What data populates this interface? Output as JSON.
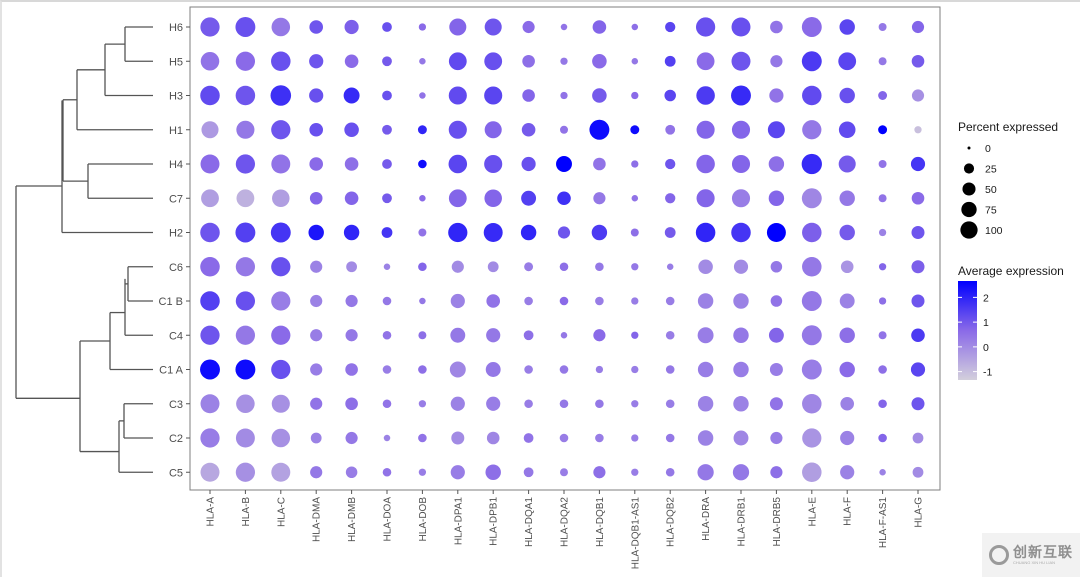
{
  "chart_data": {
    "type": "dotplot",
    "title": "",
    "xlabel": "",
    "ylabel": "",
    "genes": [
      "HLA-A",
      "HLA-B",
      "HLA-C",
      "HLA-DMA",
      "HLA-DMB",
      "HLA-DOA",
      "HLA-DOB",
      "HLA-DPA1",
      "HLA-DPB1",
      "HLA-DQA1",
      "HLA-DQA2",
      "HLA-DQB1",
      "HLA-DQB1-AS1",
      "HLA-DQB2",
      "HLA-DRA",
      "HLA-DRB1",
      "HLA-DRB5",
      "HLA-E",
      "HLA-F",
      "HLA-F-AS1",
      "HLA-G"
    ],
    "clusters": [
      "H6",
      "H5",
      "H3",
      "H1",
      "H4",
      "C7",
      "H2",
      "C6",
      "C1 B",
      "C4",
      "C1 A",
      "C3",
      "C2",
      "C5"
    ],
    "dendrogram": {
      "orientation": "left",
      "leaf_order": [
        "H6",
        "H5",
        "H3",
        "H1",
        "H4",
        "C7",
        "H2",
        "C6",
        "C1 B",
        "C4",
        "C1 A",
        "C3",
        "C2",
        "C5"
      ],
      "merges": [
        {
          "a": "H6",
          "b": "H5",
          "height": 0.2
        },
        {
          "a": "H6+H5",
          "b": "H3",
          "height": 0.4
        },
        {
          "a": "H6+H5+H3",
          "b": "H1",
          "height": 0.55
        },
        {
          "a": "H4",
          "b": "C7",
          "height": 0.45
        },
        {
          "a": "H-group",
          "b": "H4+C7",
          "height": 0.62
        },
        {
          "a": "H-group+H4+C7",
          "b": "H2",
          "height": 0.63
        },
        {
          "a": "C6",
          "b": "C1 B",
          "height": 0.3
        },
        {
          "a": "C6+C1 B",
          "b": "C4",
          "height": 0.31
        },
        {
          "a": "C6+C1 B+C4",
          "b": "C1 A",
          "height": 0.46
        },
        {
          "a": "C3",
          "b": "C2",
          "height": 0.32
        },
        {
          "a": "C3+C2",
          "b": "C5",
          "height": 0.34
        },
        {
          "a": "C-upper",
          "b": "C-lower",
          "height": 0.65
        },
        {
          "a": "H-cluster",
          "b": "C-cluster",
          "height": 0.92
        }
      ]
    },
    "percent_expressed": [
      [
        70,
        75,
        65,
        35,
        38,
        18,
        10,
        55,
        55,
        28,
        8,
        35,
        8,
        20,
        70,
        68,
        30,
        75,
        45,
        12,
        28
      ],
      [
        65,
        70,
        72,
        38,
        35,
        18,
        8,
        60,
        60,
        30,
        10,
        40,
        8,
        22,
        60,
        68,
        28,
        75,
        60,
        12,
        30
      ],
      [
        72,
        72,
        80,
        38,
        48,
        18,
        8,
        62,
        62,
        30,
        10,
        40,
        10,
        25,
        65,
        75,
        38,
        72,
        45,
        15,
        28
      ],
      [
        55,
        62,
        70,
        35,
        40,
        18,
        15,
        62,
        55,
        35,
        12,
        75,
        15,
        18,
        62,
        62,
        55,
        70,
        52,
        15,
        10
      ],
      [
        68,
        70,
        68,
        35,
        35,
        18,
        14,
        65,
        62,
        38,
        48,
        30,
        10,
        20,
        65,
        62,
        45,
        78,
        55,
        12,
        38
      ],
      [
        60,
        60,
        58,
        30,
        35,
        18,
        8,
        60,
        58,
        42,
        35,
        28,
        8,
        20,
        62,
        62,
        45,
        75,
        45,
        12,
        30
      ],
      [
        72,
        75,
        75,
        45,
        45,
        22,
        12,
        70,
        68,
        45,
        28,
        45,
        12,
        22,
        72,
        72,
        68,
        72,
        45,
        10,
        32
      ],
      [
        72,
        70,
        70,
        28,
        22,
        8,
        14,
        28,
        22,
        15,
        14,
        14,
        10,
        8,
        40,
        38,
        25,
        72,
        30,
        10,
        32
      ],
      [
        72,
        70,
        70,
        28,
        28,
        14,
        8,
        38,
        35,
        14,
        14,
        14,
        10,
        14,
        45,
        45,
        25,
        75,
        42,
        10,
        32
      ],
      [
        70,
        70,
        70,
        28,
        28,
        14,
        12,
        42,
        38,
        18,
        8,
        28,
        10,
        14,
        48,
        45,
        42,
        75,
        45,
        12,
        35
      ],
      [
        75,
        75,
        70,
        28,
        30,
        14,
        14,
        48,
        42,
        14,
        14,
        10,
        10,
        14,
        45,
        45,
        32,
        75,
        45,
        14,
        38
      ],
      [
        68,
        65,
        62,
        28,
        30,
        14,
        10,
        38,
        38,
        14,
        14,
        14,
        10,
        14,
        45,
        45,
        32,
        72,
        35,
        14,
        32
      ],
      [
        70,
        68,
        65,
        22,
        28,
        8,
        14,
        32,
        30,
        18,
        14,
        14,
        10,
        14,
        45,
        42,
        28,
        70,
        38,
        14,
        22
      ],
      [
        68,
        70,
        68,
        28,
        25,
        14,
        10,
        38,
        45,
        18,
        12,
        28,
        10,
        14,
        50,
        50,
        28,
        72,
        38,
        8,
        22
      ]
    ],
    "average_expression": [
      [
        0.8,
        1.0,
        0.2,
        0.9,
        0.7,
        1.0,
        0.5,
        0.6,
        0.9,
        0.5,
        0.3,
        0.6,
        0.4,
        1.2,
        1.0,
        1.0,
        0.3,
        0.5,
        1.2,
        0.2,
        0.6
      ],
      [
        0.3,
        0.5,
        1.0,
        0.9,
        0.5,
        0.8,
        0.2,
        1.1,
        1.0,
        0.4,
        0.2,
        0.5,
        0.2,
        1.3,
        0.5,
        0.9,
        0.2,
        1.4,
        1.2,
        0.2,
        0.8
      ],
      [
        1.1,
        0.9,
        1.6,
        1.0,
        1.7,
        1.0,
        0.3,
        1.1,
        1.2,
        0.6,
        0.3,
        0.8,
        0.5,
        1.2,
        1.4,
        1.7,
        0.3,
        1.1,
        1.0,
        0.6,
        -0.3
      ],
      [
        -0.5,
        0.2,
        0.9,
        1.0,
        1.0,
        0.8,
        1.8,
        1.0,
        0.6,
        0.8,
        0.3,
        2.3,
        2.3,
        0.3,
        0.6,
        0.6,
        1.2,
        0.2,
        1.1,
        2.5,
        -1.3
      ],
      [
        0.5,
        0.9,
        0.3,
        0.5,
        0.4,
        0.8,
        2.3,
        1.2,
        1.0,
        1.0,
        2.5,
        0.3,
        0.4,
        0.9,
        0.6,
        0.6,
        0.4,
        1.7,
        0.8,
        0.3,
        1.5
      ],
      [
        -0.6,
        -1.0,
        -0.6,
        0.6,
        0.6,
        0.8,
        0.5,
        0.6,
        0.6,
        1.3,
        1.6,
        0.2,
        0.3,
        0.6,
        0.6,
        0.1,
        0.6,
        -0.1,
        0.2,
        0.3,
        0.5
      ],
      [
        0.9,
        1.3,
        1.5,
        2.1,
        1.8,
        1.5,
        0.3,
        1.8,
        1.7,
        1.8,
        0.9,
        1.4,
        0.4,
        0.8,
        1.8,
        1.5,
        2.5,
        0.7,
        0.8,
        0.0,
        0.9
      ],
      [
        0.5,
        0.2,
        1.0,
        0.0,
        -0.2,
        0.0,
        0.6,
        -0.2,
        -0.2,
        0.1,
        0.4,
        0.2,
        0.2,
        0.1,
        -0.2,
        -0.2,
        0.2,
        0.2,
        -0.4,
        0.6,
        0.7
      ],
      [
        1.3,
        1.0,
        0.1,
        0.0,
        0.2,
        0.2,
        0.2,
        0.0,
        0.3,
        0.1,
        0.5,
        0.1,
        0.1,
        0.1,
        0.0,
        0.0,
        0.3,
        0.2,
        0.0,
        0.4,
        0.9
      ],
      [
        0.9,
        0.2,
        0.5,
        0.1,
        0.2,
        0.3,
        0.4,
        0.2,
        0.2,
        0.4,
        0.2,
        0.5,
        0.6,
        0.1,
        0.1,
        0.2,
        0.6,
        0.2,
        0.4,
        0.3,
        1.4
      ],
      [
        2.3,
        2.3,
        1.0,
        0.1,
        0.3,
        0.1,
        0.4,
        -0.1,
        0.2,
        0.1,
        0.2,
        0.1,
        0.1,
        0.2,
        0.1,
        0.1,
        0.1,
        0.1,
        0.5,
        0.4,
        1.2
      ],
      [
        0.0,
        -0.3,
        -0.3,
        0.3,
        0.4,
        0.3,
        0.1,
        0.0,
        0.1,
        0.1,
        0.2,
        0.2,
        0.1,
        0.1,
        0.0,
        0.0,
        0.3,
        -0.1,
        0.0,
        0.6,
        0.9
      ],
      [
        0.1,
        -0.2,
        -0.3,
        0.0,
        0.2,
        0.0,
        0.3,
        -0.2,
        -0.1,
        0.3,
        0.1,
        0.1,
        0.1,
        0.2,
        0.0,
        -0.1,
        0.1,
        -0.4,
        0.0,
        0.6,
        -0.2
      ],
      [
        -0.8,
        -0.3,
        -0.7,
        0.2,
        0.1,
        0.3,
        0.1,
        0.1,
        0.4,
        0.2,
        0.1,
        0.4,
        0.1,
        0.2,
        0.2,
        0.2,
        0.4,
        -0.6,
        0.0,
        0.0,
        -0.2
      ]
    ],
    "legend": {
      "size_title": "Percent expressed",
      "size_breaks": [
        0,
        25,
        50,
        75,
        100
      ],
      "color_title": "Average expression",
      "color_breaks": [
        2,
        1,
        0,
        -1
      ],
      "color_low": "#cfc8dc",
      "color_high": "#0000ff",
      "color_range": [
        -1.5,
        2.5
      ],
      "position": "right"
    },
    "grid": false
  },
  "watermark": {
    "cn": "创新互联",
    "en": "CHUANG XIN HU LIAN"
  }
}
